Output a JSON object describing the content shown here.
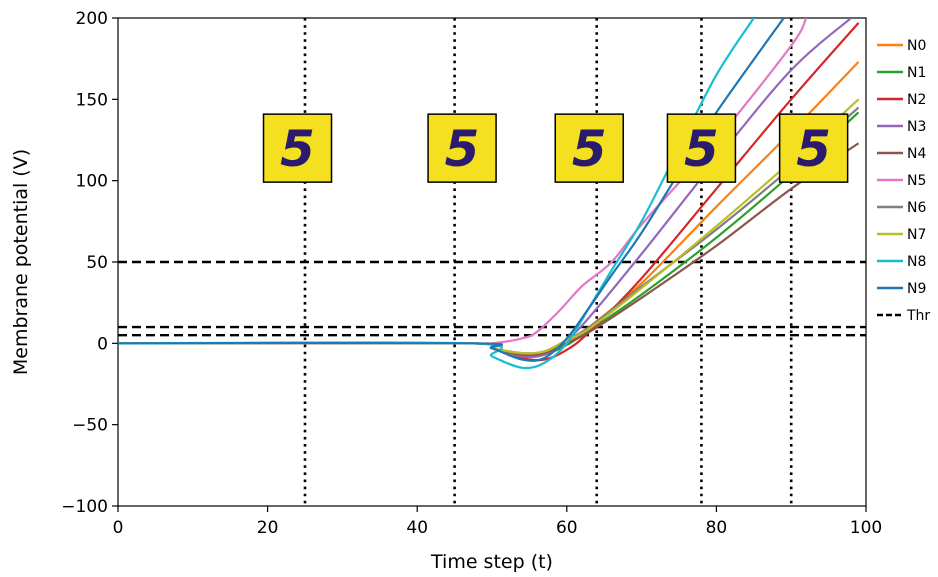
{
  "chart_data": {
    "type": "line",
    "xlabel": "Time step (t)",
    "ylabel": "Membrane potential (V)",
    "xlim": [
      0,
      100
    ],
    "ylim": [
      -100,
      200
    ],
    "xticks": [
      0,
      20,
      40,
      60,
      80,
      100
    ],
    "yticks": [
      -100,
      -50,
      0,
      50,
      100,
      150,
      200
    ],
    "xtick_labels": [
      "0",
      "20",
      "40",
      "60",
      "80",
      "100"
    ],
    "ytick_labels": [
      "−100",
      "−50",
      "0",
      "50",
      "100",
      "150",
      "200"
    ],
    "grid": false,
    "legend_position": "outside-right",
    "series": [
      {
        "name": "N0",
        "color": "#ff7f0e",
        "x": [
          0,
          47,
          50,
          54,
          57,
          60,
          63,
          70,
          80,
          90,
          99
        ],
        "y": [
          0,
          0,
          -3,
          -7,
          -6,
          0,
          10,
          37,
          84,
          130,
          173
        ]
      },
      {
        "name": "N1",
        "color": "#2ca02c",
        "x": [
          0,
          47,
          50,
          54,
          57,
          60,
          63,
          70,
          80,
          90,
          99
        ],
        "y": [
          0,
          0,
          -3,
          -8,
          -7,
          -1,
          8,
          30,
          65,
          104,
          142
        ]
      },
      {
        "name": "N2",
        "color": "#d62728",
        "x": [
          0,
          47,
          50,
          54,
          57,
          60,
          63,
          70,
          80,
          90,
          99
        ],
        "y": [
          0,
          0,
          -3,
          -9,
          -10,
          -4,
          7,
          40,
          95,
          150,
          197
        ]
      },
      {
        "name": "N3",
        "color": "#9467bd",
        "x": [
          0,
          47,
          50,
          54,
          57,
          60,
          63,
          70,
          80,
          90,
          98
        ],
        "y": [
          0,
          0,
          -3,
          -8,
          -7,
          2,
          16,
          55,
          113,
          168,
          200
        ]
      },
      {
        "name": "N4",
        "color": "#8c564b",
        "x": [
          0,
          47,
          50,
          54,
          57,
          60,
          63,
          70,
          80,
          90,
          99
        ],
        "y": [
          0,
          0,
          -3,
          -7,
          -6,
          0,
          7,
          28,
          60,
          95,
          123
        ]
      },
      {
        "name": "N5",
        "color": "#e377c2",
        "x": [
          0,
          47,
          50,
          54,
          56,
          59,
          62,
          66,
          70,
          80,
          90,
          92
        ],
        "y": [
          0,
          0,
          0,
          3,
          7,
          20,
          35,
          50,
          73,
          125,
          183,
          200
        ]
      },
      {
        "name": "N6",
        "color": "#7f7f7f",
        "x": [
          0,
          47,
          50,
          54,
          57,
          60,
          63,
          70,
          80,
          90,
          99
        ],
        "y": [
          0,
          0,
          -3,
          -6,
          -5,
          2,
          10,
          35,
          70,
          108,
          145
        ]
      },
      {
        "name": "N7",
        "color": "#bcbd22",
        "x": [
          0,
          47,
          50,
          54,
          57,
          60,
          63,
          70,
          80,
          90,
          99
        ],
        "y": [
          0,
          0,
          -3,
          -6,
          -5,
          2,
          9,
          34,
          72,
          112,
          150
        ]
      },
      {
        "name": "N8",
        "color": "#17becf",
        "x": [
          0,
          47,
          50,
          54,
          57,
          60,
          63,
          66,
          70,
          75,
          80,
          85
        ],
        "y": [
          0,
          0,
          -8,
          -15,
          -12,
          0,
          22,
          45,
          75,
          120,
          165,
          200
        ]
      },
      {
        "name": "N9",
        "color": "#1f77b4",
        "x": [
          0,
          47,
          50,
          54,
          57,
          60,
          63,
          66,
          70,
          75,
          80,
          89
        ],
        "y": [
          0,
          0,
          -3,
          -10,
          -9,
          3,
          22,
          42,
          68,
          105,
          142,
          200
        ]
      }
    ],
    "thresholds": {
      "name": "Thr",
      "values": [
        50,
        10,
        5
      ]
    },
    "time_markers": [
      25,
      45,
      64,
      78,
      90
    ],
    "digit_images": {
      "label": "5",
      "background_color": "#f5e020",
      "ink_color": "#2b1b6e",
      "x_positions": [
        24,
        46,
        63,
        78,
        93
      ],
      "y_center": 120
    }
  }
}
